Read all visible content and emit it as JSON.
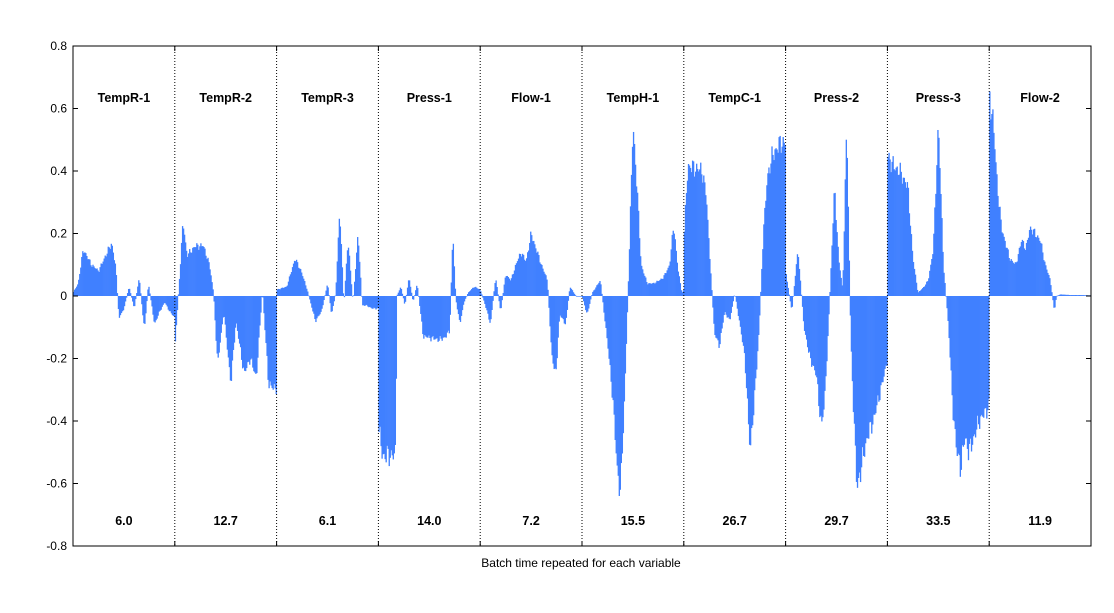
{
  "chart_data": {
    "type": "bar",
    "title": "",
    "xlabel": "Batch time repeated for each variable",
    "ylabel": "",
    "ylim": [
      -0.8,
      0.8
    ],
    "yticks": [
      -0.8,
      -0.6,
      -0.4,
      -0.2,
      0,
      0.2,
      0.4,
      0.6,
      0.8
    ],
    "ytick_labels": [
      "-0.8",
      "-0.6",
      "-0.4",
      "-0.2",
      "0",
      "0.2",
      "0.4",
      "0.6",
      "0.8"
    ],
    "grid": false,
    "bar_color": "#4080ff",
    "samples_per_variable": 100,
    "variables": [
      {
        "name": "TempR-1",
        "value": "6.0",
        "profile": [
          [
            0,
            0.01
          ],
          [
            0.05,
            0.04
          ],
          [
            0.1,
            0.15
          ],
          [
            0.18,
            0.1
          ],
          [
            0.25,
            0.08
          ],
          [
            0.32,
            0.13
          ],
          [
            0.38,
            0.17
          ],
          [
            0.42,
            0.09
          ],
          [
            0.45,
            -0.07
          ],
          [
            0.5,
            -0.04
          ],
          [
            0.55,
            0.03
          ],
          [
            0.6,
            -0.04
          ],
          [
            0.65,
            0.06
          ],
          [
            0.7,
            -0.11
          ],
          [
            0.74,
            0.04
          ],
          [
            0.8,
            -0.09
          ],
          [
            0.85,
            -0.05
          ],
          [
            0.9,
            -0.02
          ],
          [
            0.95,
            -0.05
          ],
          [
            1,
            -0.07
          ]
        ]
      },
      {
        "name": "TempR-2",
        "value": "12.7",
        "profile": [
          [
            0,
            -0.17
          ],
          [
            0.04,
            0.03
          ],
          [
            0.08,
            0.24
          ],
          [
            0.12,
            0.13
          ],
          [
            0.2,
            0.16
          ],
          [
            0.28,
            0.16
          ],
          [
            0.34,
            0.1
          ],
          [
            0.38,
            0.01
          ],
          [
            0.42,
            -0.22
          ],
          [
            0.48,
            -0.05
          ],
          [
            0.55,
            -0.28
          ],
          [
            0.6,
            -0.08
          ],
          [
            0.68,
            -0.25
          ],
          [
            0.74,
            -0.2
          ],
          [
            0.8,
            -0.26
          ],
          [
            0.86,
            0.02
          ],
          [
            0.92,
            -0.28
          ],
          [
            0.97,
            -0.3
          ],
          [
            1,
            -0.29
          ]
        ]
      },
      {
        "name": "TempR-3",
        "value": "6.1",
        "profile": [
          [
            0,
            0.02
          ],
          [
            0.1,
            0.03
          ],
          [
            0.18,
            0.12
          ],
          [
            0.24,
            0.08
          ],
          [
            0.3,
            0.02
          ],
          [
            0.38,
            -0.08
          ],
          [
            0.44,
            -0.05
          ],
          [
            0.5,
            0.04
          ],
          [
            0.54,
            -0.06
          ],
          [
            0.58,
            0.01
          ],
          [
            0.62,
            0.28
          ],
          [
            0.66,
            -0.03
          ],
          [
            0.7,
            0.18
          ],
          [
            0.75,
            -0.02
          ],
          [
            0.8,
            0.2
          ],
          [
            0.84,
            -0.03
          ],
          [
            0.88,
            -0.03
          ],
          [
            0.94,
            -0.04
          ],
          [
            1,
            -0.04
          ]
        ]
      },
      {
        "name": "Press-1",
        "value": "14.0",
        "profile": [
          [
            0,
            -0.42
          ],
          [
            0.04,
            -0.51
          ],
          [
            0.17,
            -0.51
          ],
          [
            0.18,
            0.0
          ],
          [
            0.22,
            0.03
          ],
          [
            0.26,
            -0.03
          ],
          [
            0.3,
            0.06
          ],
          [
            0.34,
            -0.02
          ],
          [
            0.38,
            0.04
          ],
          [
            0.44,
            -0.13
          ],
          [
            0.6,
            -0.14
          ],
          [
            0.66,
            -0.13
          ],
          [
            0.7,
            -0.11
          ],
          [
            0.73,
            0.2
          ],
          [
            0.76,
            -0.01
          ],
          [
            0.8,
            -0.09
          ],
          [
            0.84,
            -0.02
          ],
          [
            0.88,
            0.01
          ],
          [
            0.94,
            0.03
          ],
          [
            1,
            0.02
          ]
        ]
      },
      {
        "name": "Flow-1",
        "value": "7.2",
        "profile": [
          [
            0,
            0.02
          ],
          [
            0.05,
            -0.03
          ],
          [
            0.1,
            -0.09
          ],
          [
            0.15,
            0.06
          ],
          [
            0.2,
            -0.05
          ],
          [
            0.25,
            0.07
          ],
          [
            0.3,
            0.05
          ],
          [
            0.35,
            0.1
          ],
          [
            0.4,
            0.14
          ],
          [
            0.45,
            0.11
          ],
          [
            0.5,
            0.2
          ],
          [
            0.55,
            0.15
          ],
          [
            0.6,
            0.1
          ],
          [
            0.66,
            0.05
          ],
          [
            0.7,
            -0.18
          ],
          [
            0.74,
            -0.26
          ],
          [
            0.78,
            -0.06
          ],
          [
            0.84,
            -0.09
          ],
          [
            0.88,
            0.03
          ],
          [
            0.94,
            0.0
          ],
          [
            1,
            0.0
          ]
        ]
      },
      {
        "name": "TempH-1",
        "value": "15.5",
        "profile": [
          [
            0,
            0.0
          ],
          [
            0.05,
            -0.06
          ],
          [
            0.1,
            0.01
          ],
          [
            0.18,
            0.05
          ],
          [
            0.25,
            -0.15
          ],
          [
            0.3,
            -0.32
          ],
          [
            0.35,
            -0.58
          ],
          [
            0.38,
            -0.62
          ],
          [
            0.42,
            -0.3
          ],
          [
            0.46,
            0.1
          ],
          [
            0.5,
            0.55
          ],
          [
            0.54,
            0.35
          ],
          [
            0.58,
            0.1
          ],
          [
            0.64,
            0.04
          ],
          [
            0.7,
            0.04
          ],
          [
            0.76,
            0.05
          ],
          [
            0.8,
            0.06
          ],
          [
            0.86,
            0.1
          ],
          [
            0.9,
            0.23
          ],
          [
            0.94,
            0.09
          ],
          [
            0.98,
            0.01
          ],
          [
            1,
            0.02
          ]
        ]
      },
      {
        "name": "TempC-1",
        "value": "26.7",
        "profile": [
          [
            0,
            0.18
          ],
          [
            0.04,
            0.42
          ],
          [
            0.1,
            0.41
          ],
          [
            0.18,
            0.4
          ],
          [
            0.22,
            0.32
          ],
          [
            0.26,
            0.1
          ],
          [
            0.3,
            -0.12
          ],
          [
            0.35,
            -0.16
          ],
          [
            0.4,
            -0.05
          ],
          [
            0.45,
            -0.08
          ],
          [
            0.5,
            0.01
          ],
          [
            0.55,
            -0.09
          ],
          [
            0.6,
            -0.2
          ],
          [
            0.65,
            -0.5
          ],
          [
            0.7,
            -0.3
          ],
          [
            0.74,
            -0.1
          ],
          [
            0.78,
            0.2
          ],
          [
            0.82,
            0.38
          ],
          [
            0.86,
            0.44
          ],
          [
            0.9,
            0.47
          ],
          [
            0.95,
            0.49
          ],
          [
            1,
            0.49
          ]
        ]
      },
      {
        "name": "Press-2",
        "value": "29.7",
        "profile": [
          [
            0,
            0.08
          ],
          [
            0.06,
            -0.05
          ],
          [
            0.12,
            0.15
          ],
          [
            0.18,
            -0.1
          ],
          [
            0.24,
            -0.2
          ],
          [
            0.3,
            -0.25
          ],
          [
            0.35,
            -0.42
          ],
          [
            0.38,
            -0.35
          ],
          [
            0.42,
            -0.1
          ],
          [
            0.48,
            0.35
          ],
          [
            0.52,
            0.12
          ],
          [
            0.56,
            0.02
          ],
          [
            0.6,
            0.55
          ],
          [
            0.64,
            -0.15
          ],
          [
            0.7,
            -0.62
          ],
          [
            0.74,
            -0.55
          ],
          [
            0.8,
            -0.45
          ],
          [
            0.86,
            -0.4
          ],
          [
            0.92,
            -0.32
          ],
          [
            0.97,
            -0.25
          ],
          [
            1,
            -0.2
          ]
        ]
      },
      {
        "name": "Press-3",
        "value": "33.5",
        "profile": [
          [
            0,
            0.45
          ],
          [
            0.05,
            0.42
          ],
          [
            0.12,
            0.4
          ],
          [
            0.2,
            0.35
          ],
          [
            0.25,
            0.12
          ],
          [
            0.3,
            0.01
          ],
          [
            0.36,
            0.03
          ],
          [
            0.4,
            0.05
          ],
          [
            0.45,
            0.15
          ],
          [
            0.5,
            0.55
          ],
          [
            0.55,
            0.1
          ],
          [
            0.6,
            -0.1
          ],
          [
            0.64,
            -0.35
          ],
          [
            0.68,
            -0.5
          ],
          [
            0.72,
            -0.55
          ],
          [
            0.76,
            -0.45
          ],
          [
            0.8,
            -0.5
          ],
          [
            0.85,
            -0.45
          ],
          [
            0.9,
            -0.4
          ],
          [
            0.95,
            -0.38
          ],
          [
            1,
            -0.35
          ]
        ]
      },
      {
        "name": "Flow-2",
        "value": "11.9",
        "profile": [
          [
            0,
            0.65
          ],
          [
            0.04,
            0.55
          ],
          [
            0.08,
            0.35
          ],
          [
            0.12,
            0.22
          ],
          [
            0.16,
            0.17
          ],
          [
            0.2,
            0.12
          ],
          [
            0.26,
            0.1
          ],
          [
            0.32,
            0.18
          ],
          [
            0.36,
            0.15
          ],
          [
            0.4,
            0.22
          ],
          [
            0.45,
            0.2
          ],
          [
            0.5,
            0.18
          ],
          [
            0.55,
            0.1
          ],
          [
            0.6,
            0.05
          ],
          [
            0.64,
            -0.05
          ],
          [
            0.66,
            0.0
          ],
          [
            0.7,
            0.005
          ],
          [
            0.8,
            0.003
          ],
          [
            0.9,
            0.003
          ],
          [
            1,
            0.002
          ]
        ]
      }
    ]
  }
}
